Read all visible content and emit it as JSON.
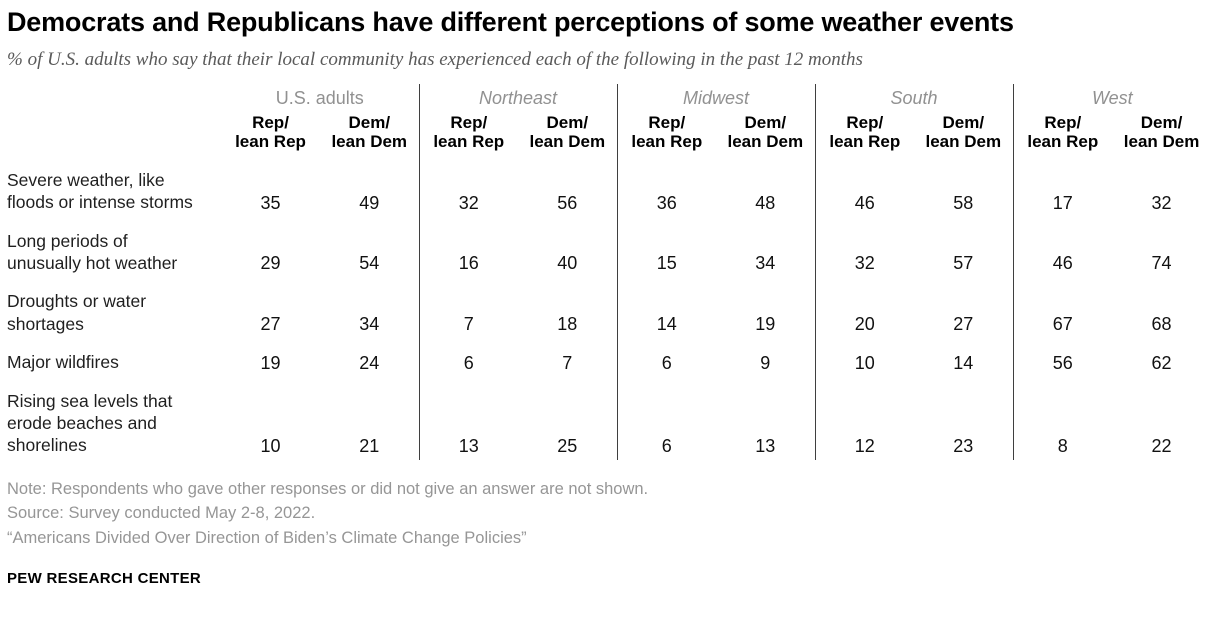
{
  "header": {
    "title": "Democrats and Republicans have different perceptions of some weather events",
    "subtitle": "% of U.S. adults who say that their local community has experienced each of the following in the past 12 months"
  },
  "table": {
    "groups": [
      {
        "name": "U.S. adults",
        "italic": false,
        "subcolumns": [
          "Rep/\nlean Rep",
          "Dem/\nlean Dem"
        ]
      },
      {
        "name": "Northeast",
        "italic": true,
        "subcolumns": [
          "Rep/\nlean Rep",
          "Dem/\nlean Dem"
        ]
      },
      {
        "name": "Midwest",
        "italic": true,
        "subcolumns": [
          "Rep/\nlean Rep",
          "Dem/\nlean Dem"
        ]
      },
      {
        "name": "South",
        "italic": true,
        "subcolumns": [
          "Rep/\nlean Rep",
          "Dem/\nlean Dem"
        ]
      },
      {
        "name": "West",
        "italic": true,
        "subcolumns": [
          "Rep/\nlean Rep",
          "Dem/\nlean Dem"
        ]
      }
    ],
    "rows": [
      {
        "label": "Severe weather, like floods or intense storms",
        "values": [
          35,
          49,
          32,
          56,
          36,
          48,
          46,
          58,
          17,
          32
        ]
      },
      {
        "label": "Long periods of unusually hot weather",
        "values": [
          29,
          54,
          16,
          40,
          15,
          34,
          32,
          57,
          46,
          74
        ]
      },
      {
        "label": "Droughts or water shortages",
        "values": [
          27,
          34,
          7,
          18,
          14,
          19,
          20,
          27,
          67,
          68
        ]
      },
      {
        "label": "Major wildfires",
        "values": [
          19,
          24,
          6,
          7,
          6,
          9,
          10,
          14,
          56,
          62
        ]
      },
      {
        "label": "Rising sea levels that erode beaches and shorelines",
        "values": [
          10,
          21,
          13,
          25,
          6,
          13,
          12,
          23,
          8,
          22
        ]
      }
    ]
  },
  "footer": {
    "note": "Note: Respondents who gave other responses or did not give an answer are not shown.",
    "source": "Source: Survey conducted May 2-8, 2022.",
    "report": "“Americans Divided Over Direction of Biden’s Climate Change Policies”",
    "brand": "PEW RESEARCH CENTER"
  },
  "colors": {
    "title_text": "#000000",
    "subtitle_text": "#5a5a5a",
    "group_header_text": "#919191",
    "value_text": "#111111",
    "footer_text": "#969696",
    "divider_line": "#3f3f3f"
  },
  "chart_data": {
    "type": "table",
    "title": "Democrats and Republicans have different perceptions of some weather events",
    "subtitle": "% of U.S. adults who say that their local community has experienced each of the following in the past 12 months",
    "unit": "percent",
    "categories": [
      "Severe weather, like floods or intense storms",
      "Long periods of unusually hot weather",
      "Droughts or water shortages",
      "Major wildfires",
      "Rising sea levels that erode beaches and shorelines"
    ],
    "column_groups": [
      "U.S. adults",
      "Northeast",
      "Midwest",
      "South",
      "West"
    ],
    "subcolumns": [
      "Rep/lean Rep",
      "Dem/lean Dem"
    ],
    "series": [
      {
        "name": "U.S. adults - Rep/lean Rep",
        "values": [
          35,
          29,
          27,
          19,
          10
        ]
      },
      {
        "name": "U.S. adults - Dem/lean Dem",
        "values": [
          49,
          54,
          34,
          24,
          21
        ]
      },
      {
        "name": "Northeast - Rep/lean Rep",
        "values": [
          32,
          16,
          7,
          6,
          13
        ]
      },
      {
        "name": "Northeast - Dem/lean Dem",
        "values": [
          56,
          40,
          18,
          7,
          25
        ]
      },
      {
        "name": "Midwest - Rep/lean Rep",
        "values": [
          36,
          15,
          14,
          6,
          6
        ]
      },
      {
        "name": "Midwest - Dem/lean Dem",
        "values": [
          48,
          34,
          19,
          9,
          13
        ]
      },
      {
        "name": "South - Rep/lean Rep",
        "values": [
          46,
          32,
          20,
          10,
          12
        ]
      },
      {
        "name": "South - Dem/lean Dem",
        "values": [
          58,
          57,
          27,
          14,
          23
        ]
      },
      {
        "name": "West - Rep/lean Rep",
        "values": [
          17,
          46,
          67,
          56,
          8
        ]
      },
      {
        "name": "West - Dem/lean Dem",
        "values": [
          32,
          74,
          68,
          62,
          22
        ]
      }
    ]
  }
}
